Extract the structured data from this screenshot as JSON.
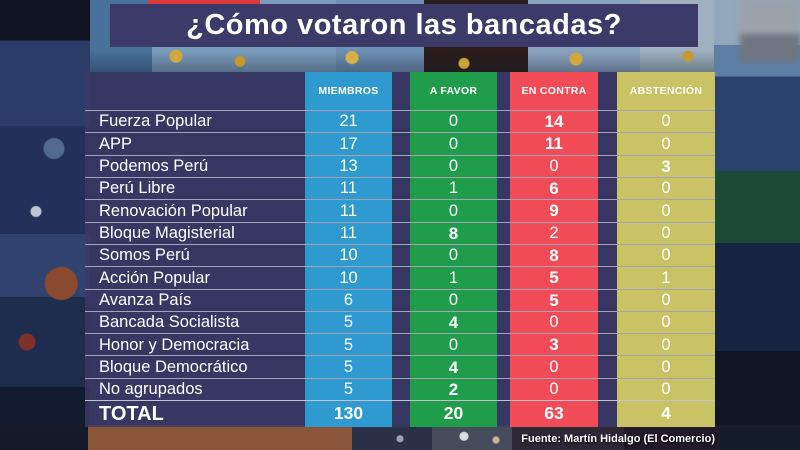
{
  "colors": {
    "title_bg": "#3C3A68",
    "members": "#2E9AD0",
    "favor": "#1F9D4A",
    "contra": "#F14B58",
    "abstencion": "#C9C365",
    "panel_overlay": "rgba(60,58,102,0.80)"
  },
  "chart_data": {
    "type": "table",
    "title": "¿Cómo votaron las bancadas?",
    "columns": [
      "MIEMBROS",
      "A FAVOR",
      "EN CONTRA",
      "ABSTENCIÓN"
    ],
    "rows": [
      {
        "name": "Fuerza Popular",
        "miembros": 21,
        "favor": 0,
        "contra": 14,
        "abstencion": 0,
        "bold": "contra"
      },
      {
        "name": "APP",
        "miembros": 17,
        "favor": 0,
        "contra": 11,
        "abstencion": 0,
        "bold": "contra"
      },
      {
        "name": "Podemos Perú",
        "miembros": 13,
        "favor": 0,
        "contra": 0,
        "abstencion": 3,
        "bold": "abstencion"
      },
      {
        "name": "Perú Libre",
        "miembros": 11,
        "favor": 1,
        "contra": 6,
        "abstencion": 0,
        "bold": "contra"
      },
      {
        "name": "Renovación Popular",
        "miembros": 11,
        "favor": 0,
        "contra": 9,
        "abstencion": 0,
        "bold": "contra"
      },
      {
        "name": "Bloque Magisterial",
        "miembros": 11,
        "favor": 8,
        "contra": 2,
        "abstencion": 0,
        "bold": "favor"
      },
      {
        "name": "Somos Perú",
        "miembros": 10,
        "favor": 0,
        "contra": 8,
        "abstencion": 0,
        "bold": "contra"
      },
      {
        "name": "Acción Popular",
        "miembros": 10,
        "favor": 1,
        "contra": 5,
        "abstencion": 1,
        "bold": "contra"
      },
      {
        "name": "Avanza País",
        "miembros": 6,
        "favor": 0,
        "contra": 5,
        "abstencion": 0,
        "bold": "contra"
      },
      {
        "name": "Bancada Socialista",
        "miembros": 5,
        "favor": 4,
        "contra": 0,
        "abstencion": 0,
        "bold": "favor"
      },
      {
        "name": "Honor y Democracia",
        "miembros": 5,
        "favor": 0,
        "contra": 3,
        "abstencion": 0,
        "bold": "contra"
      },
      {
        "name": "Bloque Democrático",
        "miembros": 5,
        "favor": 4,
        "contra": 0,
        "abstencion": 0,
        "bold": "favor"
      },
      {
        "name": "No agrupados",
        "miembros": 5,
        "favor": 2,
        "contra": 0,
        "abstencion": 0,
        "bold": "favor"
      }
    ],
    "total": {
      "label": "TOTAL",
      "miembros": 130,
      "favor": 20,
      "contra": 63,
      "abstencion": 4
    },
    "source": "Fuente: Martín Hidalgo (El Comercio)",
    "legend_position": "none",
    "grid": "row-separators"
  }
}
